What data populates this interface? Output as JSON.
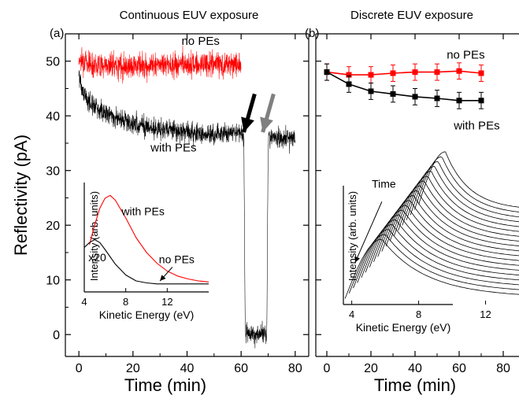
{
  "chart_data": [
    {
      "type": "line",
      "panel_label": "(a)",
      "title": "Continuous EUV exposure",
      "xlabel": "Time (min)",
      "ylabel": "Reflectivity (pA)",
      "xlim": [
        -5,
        85
      ],
      "ylim": [
        -4,
        55
      ],
      "xticks": [
        0,
        20,
        40,
        60,
        80
      ],
      "yticks": [
        0,
        10,
        20,
        30,
        40,
        50
      ],
      "series": [
        {
          "name": "no PEs",
          "color": "#ff0000",
          "style": "noisy",
          "noise": 1.6,
          "x": [
            0,
            5,
            10,
            20,
            30,
            40,
            50,
            60
          ],
          "y": [
            50.5,
            49.5,
            49.3,
            49.2,
            49.3,
            49.4,
            49.5,
            49.5
          ]
        },
        {
          "name": "with PEs",
          "color": "#000000",
          "style": "noisy",
          "noise": 1.3,
          "x": [
            0,
            1,
            3,
            5,
            10,
            15,
            20,
            30,
            40,
            50,
            60,
            61,
            61.5,
            63,
            67,
            69.5,
            70,
            71,
            75,
            80
          ],
          "y": [
            48,
            45,
            43,
            42,
            40.5,
            39.5,
            38.5,
            37.5,
            37,
            36.5,
            37,
            36,
            1,
            0,
            0.5,
            0,
            36,
            36,
            36,
            36
          ]
        }
      ],
      "annotations": [
        {
          "text": "no PEs",
          "x": 45,
          "y": 53
        },
        {
          "text": "with PEs",
          "x": 35,
          "y": 33.5
        }
      ],
      "arrows": [
        {
          "color": "#000000",
          "from": [
            65,
            44
          ],
          "to": [
            61,
            37
          ]
        },
        {
          "color": "#808080",
          "from": [
            72,
            44
          ],
          "to": [
            68,
            37
          ]
        }
      ],
      "inset": {
        "xlabel": "Kinetic Energy (eV)",
        "ylabel": "Intensity (arb. units)",
        "xlim": [
          4,
          16
        ],
        "ylim": [
          0,
          1
        ],
        "xticks": [
          4,
          8,
          12
        ],
        "series": [
          {
            "name": "with PEs",
            "color": "#ff0000",
            "x": [
              4.5,
              5,
              5.5,
              6,
              6.5,
              7,
              8,
              9,
              10,
              11,
              12,
              13,
              14,
              15,
              16
            ],
            "y": [
              0.45,
              0.65,
              0.82,
              0.92,
              0.95,
              0.9,
              0.72,
              0.52,
              0.37,
              0.26,
              0.18,
              0.13,
              0.1,
              0.08,
              0.07
            ]
          },
          {
            "name": "no PEs",
            "color": "#000000",
            "x": [
              4,
              4.5,
              5,
              5.5,
              6,
              7,
              8,
              9,
              10,
              11,
              12,
              13,
              14,
              15,
              16
            ],
            "y": [
              0.42,
              0.47,
              0.5,
              0.47,
              0.4,
              0.25,
              0.14,
              0.08,
              0.06,
              0.05,
              0.05,
              0.05,
              0.05,
              0.05,
              0.05
            ]
          }
        ],
        "annotations": [
          {
            "text": "with PEs",
            "x": 7.6,
            "y": 0.75
          },
          {
            "text": "no PEs",
            "x": 11.2,
            "y": 0.26
          },
          {
            "text": "x20",
            "x": 4.4,
            "y": 0.28
          }
        ],
        "arrow": {
          "from": [
            12.5,
            0.22
          ],
          "to": [
            11.3,
            0.08
          ]
        }
      }
    },
    {
      "type": "line",
      "panel_label": "(b)",
      "title": "Discrete EUV exposure",
      "xlabel": "Time (min)",
      "xlim": [
        -5,
        90
      ],
      "ylim": [
        -4,
        55
      ],
      "xticks": [
        0,
        20,
        40,
        60,
        80
      ],
      "series": [
        {
          "name": "no PEs",
          "color": "#ff0000",
          "marker": "square",
          "error": 1.5,
          "x": [
            0,
            10,
            20,
            30,
            40,
            50,
            60,
            70
          ],
          "y": [
            48,
            47.5,
            47.5,
            47.8,
            48,
            48,
            48.2,
            47.8
          ]
        },
        {
          "name": "with PEs",
          "color": "#000000",
          "marker": "square",
          "error": 1.5,
          "x": [
            0,
            10,
            20,
            30,
            40,
            50,
            60,
            70
          ],
          "y": [
            48,
            45.8,
            44.5,
            44,
            43.5,
            43.2,
            42.8,
            42.8
          ]
        }
      ],
      "annotations": [
        {
          "text": "no PEs",
          "x": 63,
          "y": 50.5
        },
        {
          "text": "with PEs",
          "x": 68,
          "y": 37.5
        }
      ],
      "inset": {
        "xlabel": "Kinetic Energy (eV)",
        "ylabel": "Intensity (arb. units)",
        "xlim": [
          3.5,
          14
        ],
        "ylim": [
          0,
          1
        ],
        "xticks": [
          4,
          8,
          12
        ],
        "annotations": [
          {
            "text": "Time",
            "x": 5.2,
            "y": 0.82
          }
        ],
        "arrow": {
          "from": [
            5.8,
            0.72
          ],
          "to": [
            4.2,
            0.28
          ]
        },
        "curve_family": {
          "count": 19,
          "color": "#000000",
          "first": {
            "peak_x": 5.8,
            "peak_y": 0.45,
            "start_x": 3.6,
            "start_y": 0.02,
            "end_y": 0.05
          },
          "last": {
            "peak_x": 9.6,
            "peak_y": 1.08,
            "start_x": 8.0,
            "start_y": 0.7,
            "end_y": 0.68
          },
          "end_x": 14
        }
      }
    }
  ]
}
